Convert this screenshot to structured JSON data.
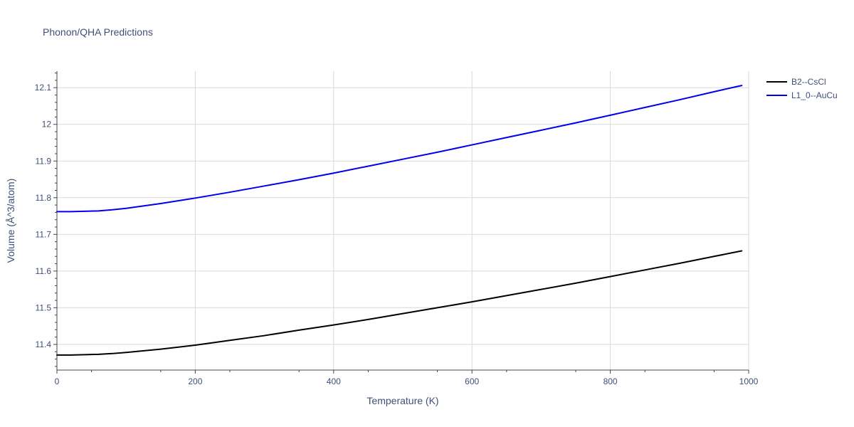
{
  "chart_data": {
    "type": "line",
    "title": "Phonon/QHA Predictions",
    "xlabel": "Temperature (K)",
    "ylabel": "Volume (Å^3/atom)",
    "xlim": [
      0,
      1000
    ],
    "ylim": [
      11.33,
      12.145
    ],
    "x_ticks": [
      0,
      200,
      400,
      600,
      800,
      1000
    ],
    "x_tick_labels": [
      "0",
      "200",
      "400",
      "600",
      "800",
      "1000"
    ],
    "y_ticks": [
      11.4,
      11.5,
      11.6,
      11.7,
      11.8,
      11.9,
      12.0,
      12.1
    ],
    "y_tick_labels": [
      "11.4",
      "11.5",
      "11.6",
      "11.7",
      "11.8",
      "11.9",
      "12",
      "12.1"
    ],
    "grid": true,
    "legend_position": "top-right",
    "series": [
      {
        "name": "B2--CsCl",
        "color": "#000000",
        "x": [
          0,
          20,
          40,
          60,
          80,
          100,
          150,
          200,
          250,
          300,
          350,
          400,
          450,
          500,
          550,
          600,
          650,
          700,
          750,
          800,
          850,
          900,
          950,
          990
        ],
        "y": [
          11.371,
          11.371,
          11.372,
          11.373,
          11.375,
          11.378,
          11.387,
          11.398,
          11.411,
          11.424,
          11.439,
          11.453,
          11.468,
          11.484,
          11.5,
          11.516,
          11.533,
          11.55,
          11.567,
          11.585,
          11.603,
          11.621,
          11.64,
          11.655
        ]
      },
      {
        "name": "L1_0--AuCu",
        "color": "#0000ee",
        "x": [
          0,
          20,
          40,
          60,
          80,
          100,
          150,
          200,
          250,
          300,
          350,
          400,
          450,
          500,
          550,
          600,
          650,
          700,
          750,
          800,
          850,
          900,
          950,
          990
        ],
        "y": [
          11.762,
          11.762,
          11.763,
          11.764,
          11.767,
          11.771,
          11.784,
          11.799,
          11.815,
          11.832,
          11.849,
          11.867,
          11.886,
          11.905,
          11.924,
          11.944,
          11.964,
          11.984,
          12.004,
          12.025,
          12.046,
          12.067,
          12.089,
          12.106
        ]
      }
    ]
  }
}
